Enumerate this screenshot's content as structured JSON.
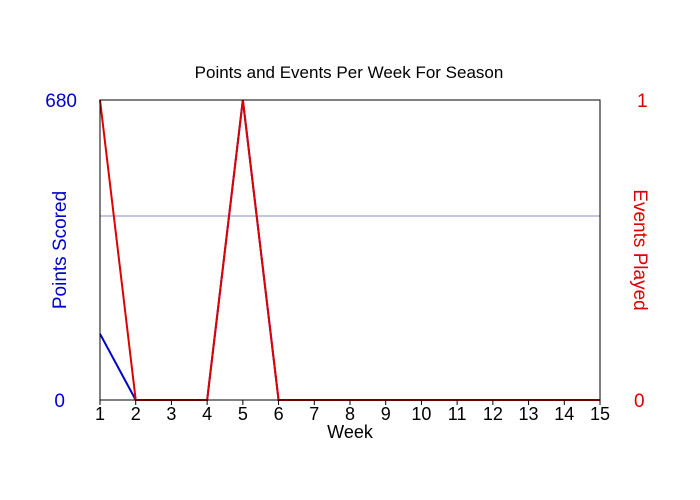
{
  "chart_data": {
    "type": "line",
    "title": "Points and Events Per Week For Season",
    "xlabel": "Week",
    "x": [
      1,
      2,
      3,
      4,
      5,
      6,
      7,
      8,
      9,
      10,
      11,
      12,
      13,
      14,
      15
    ],
    "xlim": [
      1,
      15
    ],
    "y_left": {
      "label": "Points Scored",
      "lim": [
        0,
        680
      ],
      "ticks": [
        "680",
        "0"
      ],
      "color": "#0000cc"
    },
    "y_right": {
      "label": "Events Played",
      "lim": [
        0,
        1
      ],
      "ticks": [
        "1",
        "0"
      ],
      "color": "#dd0000"
    },
    "reference_line": {
      "axis": "left",
      "value": 417,
      "color": "#8888cc"
    },
    "series": [
      {
        "axis": "left",
        "color": "#0000cc",
        "values": [
          150,
          0,
          0,
          0,
          680,
          0,
          0,
          0,
          0,
          0,
          0,
          0,
          0,
          0,
          0
        ]
      },
      {
        "axis": "right",
        "color": "#dd0000",
        "values": [
          1,
          0,
          0,
          0,
          1,
          0,
          0,
          0,
          0,
          0,
          0,
          0,
          0,
          0,
          0
        ]
      }
    ],
    "grid": false,
    "legend": "none"
  }
}
